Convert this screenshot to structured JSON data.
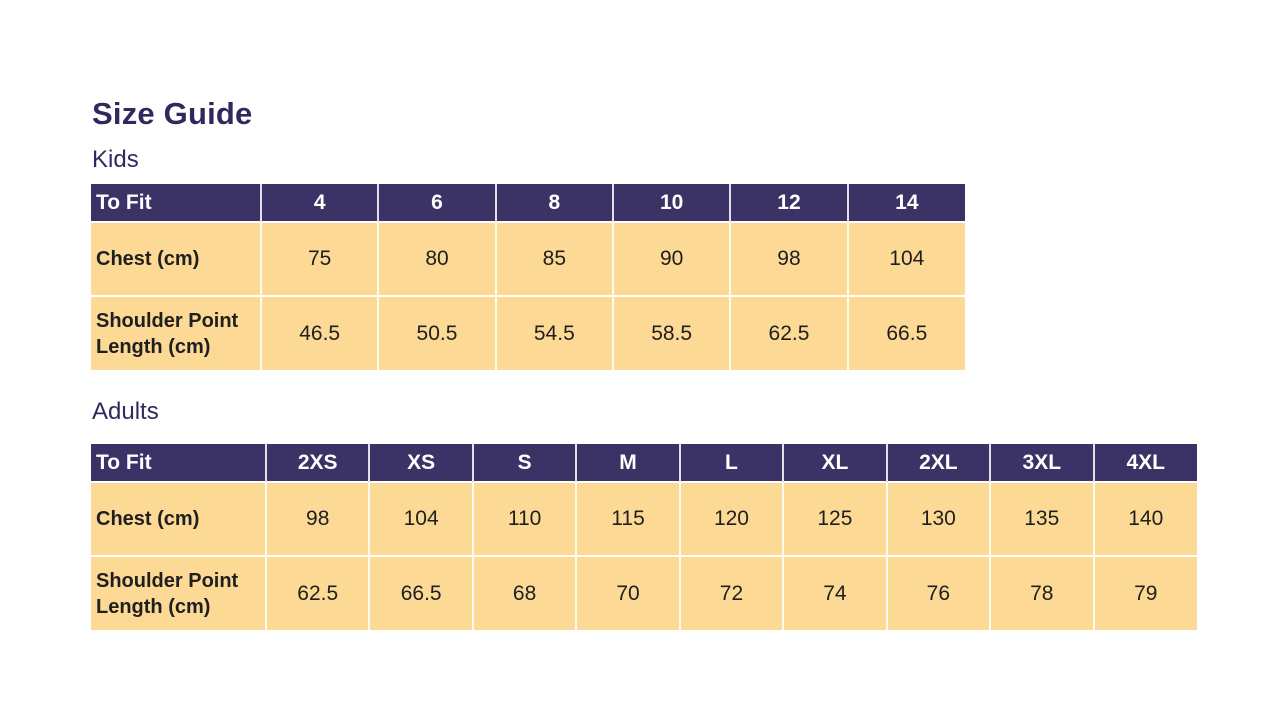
{
  "page": {
    "title": "Size Guide"
  },
  "colors": {
    "header_bg": "#3B3266",
    "body_bg": "#FCD994",
    "heading_color": "#2F2A5E",
    "header_text": "#FFFFFF",
    "body_text": "#1F1F1F"
  },
  "sections": [
    {
      "label": "Kids",
      "table": {
        "header": [
          "To Fit",
          "4",
          "6",
          "8",
          "10",
          "12",
          "14"
        ],
        "first_col_width": 170,
        "rows": [
          {
            "label": "Chest (cm)",
            "values": [
              "75",
              "80",
              "85",
              "90",
              "98",
              "104"
            ]
          },
          {
            "label": "Shoulder Point Length (cm)",
            "values": [
              "46.5",
              "50.5",
              "54.5",
              "58.5",
              "62.5",
              "66.5"
            ]
          }
        ]
      }
    },
    {
      "label": "Adults",
      "table": {
        "header": [
          "To Fit",
          "2XS",
          "XS",
          "S",
          "M",
          "L",
          "XL",
          "2XL",
          "3XL",
          "4XL"
        ],
        "first_col_width": 175,
        "rows": [
          {
            "label": "Chest (cm)",
            "values": [
              "98",
              "104",
              "110",
              "115",
              "120",
              "125",
              "130",
              "135",
              "140"
            ]
          },
          {
            "label": "Shoulder Point Length (cm)",
            "values": [
              "62.5",
              "66.5",
              "68",
              "70",
              "72",
              "74",
              "76",
              "78",
              "79"
            ]
          }
        ]
      }
    }
  ]
}
